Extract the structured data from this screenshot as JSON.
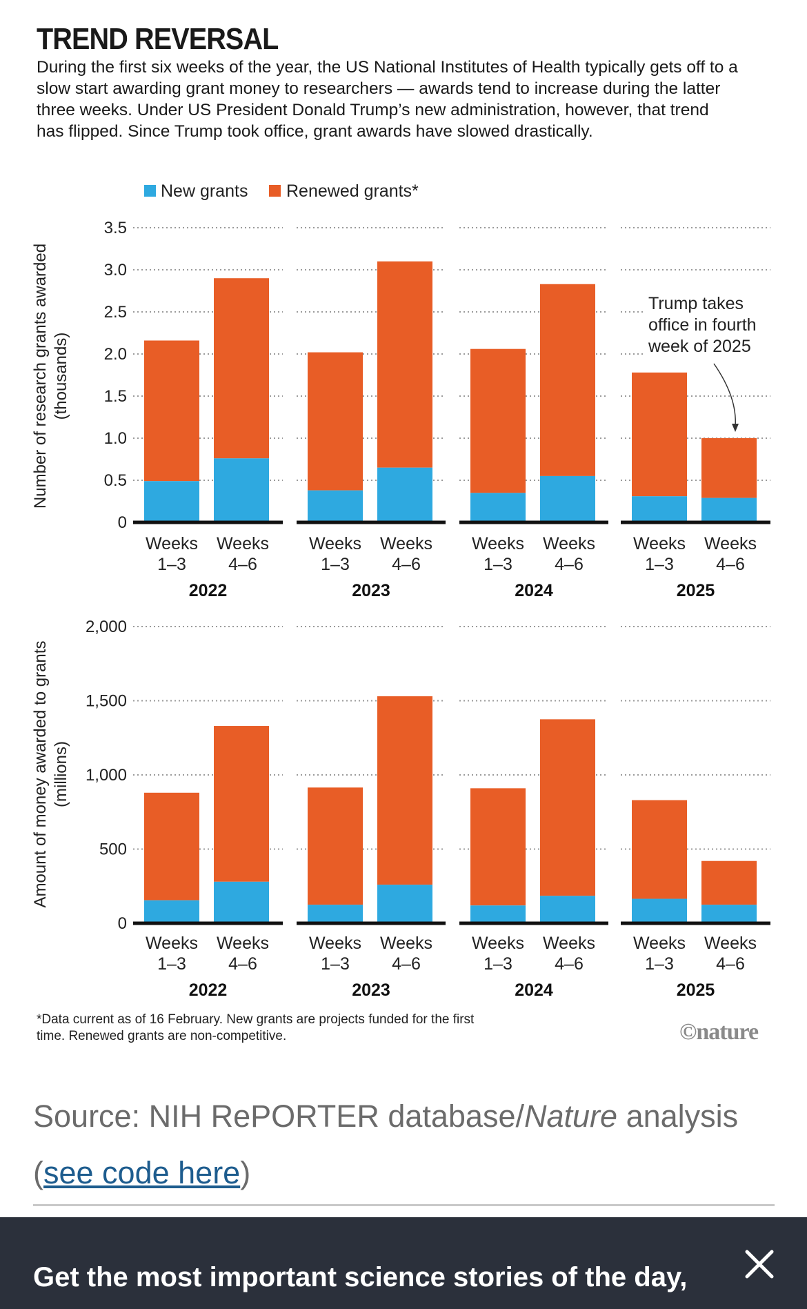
{
  "header": {
    "title": "TREND REVERSAL",
    "subtitle": "During the first six weeks of the year, the US National Institutes of Health typically gets off to a slow start awarding grant money to researchers — awards tend to increase during the latter three weeks. Under US President Donald Trump’s new administration, however, that trend has flipped. Since Trump took office, grant awards have slowed drastically."
  },
  "legend": {
    "new": "New grants",
    "renewed": "Renewed grants*"
  },
  "colors": {
    "new": "#2ea9e0",
    "renewed": "#e85d26",
    "grid": "#9a9a9a",
    "axis": "#111111"
  },
  "week_labels": [
    "Weeks\n1–3",
    "Weeks\n4–6"
  ],
  "years": [
    "2022",
    "2023",
    "2024",
    "2025"
  ],
  "chart_data": [
    {
      "type": "bar",
      "stacked": true,
      "ylabel": "Number of research grants awarded\n(thousands)",
      "ylim": [
        0,
        3.5
      ],
      "yticks": [
        0,
        0.5,
        1.0,
        1.5,
        2.0,
        2.5,
        3.0,
        3.5
      ],
      "ytick_labels": [
        "0",
        "0.5",
        "1.0",
        "1.5",
        "2.0",
        "2.5",
        "3.0",
        "3.5"
      ],
      "grid": true,
      "groups": [
        "2022",
        "2023",
        "2024",
        "2025"
      ],
      "categories": [
        "Weeks 1–3",
        "Weeks 4–6"
      ],
      "series": [
        {
          "name": "New grants",
          "values": [
            [
              0.49,
              0.76
            ],
            [
              0.38,
              0.65
            ],
            [
              0.35,
              0.55
            ],
            [
              0.31,
              0.29
            ]
          ]
        },
        {
          "name": "Renewed grants*",
          "values": [
            [
              1.67,
              2.14
            ],
            [
              1.64,
              2.45
            ],
            [
              1.71,
              2.28
            ],
            [
              1.47,
              0.71
            ]
          ]
        }
      ],
      "annotation": "Trump takes\noffice in fourth\nweek of 2025"
    },
    {
      "type": "bar",
      "stacked": true,
      "ylabel": "Amount of money awarded to grants\n(millions)",
      "ylim": [
        0,
        2000
      ],
      "yticks": [
        0,
        500,
        1000,
        1500,
        2000
      ],
      "ytick_labels": [
        "0",
        "500",
        "1,000",
        "1,500",
        "2,000"
      ],
      "grid": true,
      "groups": [
        "2022",
        "2023",
        "2024",
        "2025"
      ],
      "categories": [
        "Weeks 1–3",
        "Weeks 4–6"
      ],
      "series": [
        {
          "name": "New grants",
          "values": [
            [
              155,
              280
            ],
            [
              125,
              260
            ],
            [
              120,
              185
            ],
            [
              165,
              125
            ]
          ]
        },
        {
          "name": "Renewed grants*",
          "values": [
            [
              725,
              1050
            ],
            [
              790,
              1270
            ],
            [
              790,
              1190
            ],
            [
              665,
              295
            ]
          ]
        }
      ]
    }
  ],
  "footnote": "*Data current as of 16 February. New grants are projects funded for the first time. Renewed grants are non-competitive.",
  "credit": "©nature",
  "source": {
    "prefix": "Source: NIH RePORTER database/",
    "italic": "Nature",
    "suffix": " analysis",
    "link_open": "(",
    "link_text": "see code here",
    "link_close": ")"
  },
  "banner": {
    "text": "Get the most important science stories of the day, free in your inbox.",
    "close_icon": "close-icon"
  }
}
